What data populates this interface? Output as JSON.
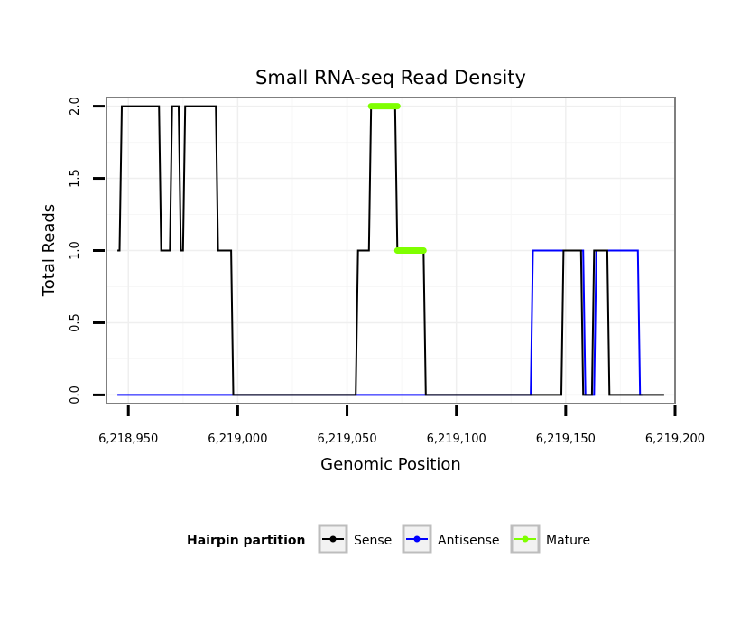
{
  "chart_data": {
    "type": "line",
    "title": "Small RNA-seq Read Density",
    "xlabel": "Genomic Position",
    "ylabel": "Total Reads",
    "xlim": [
      6218940,
      6219200
    ],
    "ylim": [
      -0.06,
      2.06
    ],
    "x_ticks": [
      6218950,
      6219000,
      6219050,
      6219100,
      6219150,
      6219200
    ],
    "x_tick_labels": [
      "6,218,950",
      "6,219,000",
      "6,219,050",
      "6,219,100",
      "6,219,150",
      "6,219,200"
    ],
    "y_ticks": [
      0,
      0.5,
      1,
      1.5,
      2
    ],
    "y_tick_labels": [
      "0.0",
      "0.5",
      "1.0",
      "1.5",
      "2.0"
    ],
    "grid": true,
    "legend": {
      "title": "Hairpin partition",
      "position": "bottom",
      "entries": [
        {
          "label": "Sense",
          "color": "#000000"
        },
        {
          "label": "Antisense",
          "color": "#0000ff"
        },
        {
          "label": "Mature",
          "color": "#7fff00"
        }
      ]
    },
    "series": [
      {
        "name": "Sense",
        "color": "#000000",
        "x": [
          6218945,
          6218946,
          6218947,
          6218964,
          6218965,
          6218969,
          6218970,
          6218973,
          6218974,
          6218975,
          6218976,
          6218990,
          6218991,
          6218995,
          6218996,
          6218997,
          6218998,
          6219054,
          6219055,
          6219060,
          6219061,
          6219072,
          6219073,
          6219085,
          6219086,
          6219148,
          6219149,
          6219157,
          6219158,
          6219162,
          6219163,
          6219169,
          6219170,
          6219195
        ],
        "y": [
          1,
          1,
          2,
          2,
          1,
          1,
          2,
          2,
          1,
          1,
          2,
          2,
          1,
          1,
          1,
          1,
          0,
          0,
          1,
          1,
          2,
          2,
          1,
          1,
          0,
          0,
          1,
          1,
          0,
          0,
          1,
          1,
          0,
          0
        ]
      },
      {
        "name": "Antisense",
        "color": "#0000ff",
        "x": [
          6218945,
          6219134,
          6219135,
          6219158,
          6219159,
          6219163,
          6219164,
          6219183,
          6219184,
          6219185
        ],
        "y": [
          0,
          0,
          1,
          1,
          0,
          0,
          1,
          1,
          0,
          0
        ]
      },
      {
        "name": "Mature",
        "color": "#7fff00",
        "segments": [
          {
            "x": [
              6219061,
              6219073
            ],
            "y": [
              2,
              2
            ]
          },
          {
            "x": [
              6219073,
              6219085
            ],
            "y": [
              1,
              1
            ]
          }
        ]
      }
    ]
  }
}
